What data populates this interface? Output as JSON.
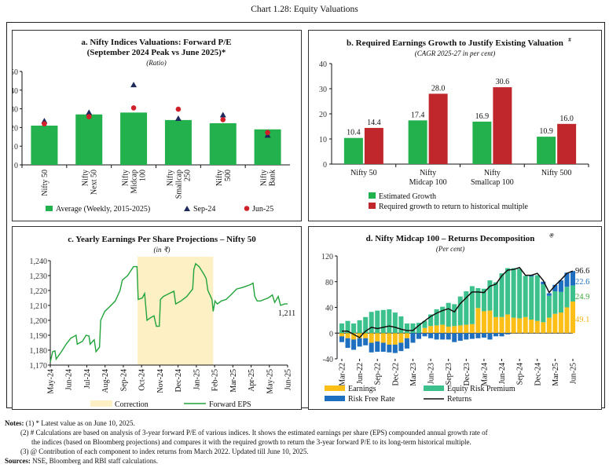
{
  "title": "Chart 1.28: Equity Valuations",
  "notes": {
    "label": "Notes:",
    "items": [
      "(1)  * Latest value as on June 10, 2025.",
      "(2)  # Calculations are based on analysis of 3-year forward P/E of various indices. It shows the estimated earnings per share (EPS) compounded annual growth rate of",
      "the indices (based on Bloomberg projections) and compares it with the required growth to return the 3-year forward P/E to its long-term historical multiple.",
      "(3)  @ Contribution of each component to index returns from March 2022. Updated till June 10, 2025."
    ],
    "sources_label": "Sources:",
    "sources": "NSE, Bloomberg and RBI staff calculations."
  },
  "chart_data": [
    {
      "type": "bar",
      "title": "a. Nifty Indices Valuations: Forward P/E",
      "title2": "(September 2024 Peak vs June 2025)*",
      "subtitle": "(Ratio)",
      "categories": [
        [
          "Nifty 50"
        ],
        [
          "Nifty",
          "Next 50"
        ],
        [
          "Nifty",
          "Midcap",
          "100"
        ],
        [
          "Nifty",
          "Smallcap",
          "250"
        ],
        [
          "Nifty",
          "500"
        ],
        [
          "Nifty",
          "Bank"
        ]
      ],
      "ylim": [
        0,
        50
      ],
      "yticks": [
        0,
        10,
        20,
        30,
        40,
        50
      ],
      "series": [
        {
          "name": "Average (Weekly, 2015-2025)",
          "kind": "bar",
          "color": "#22b14c",
          "values": [
            21,
            27,
            28,
            24,
            22.3,
            19
          ]
        },
        {
          "name": "Sep-24",
          "kind": "triangle",
          "color": "#1f2a5c",
          "values": [
            23.5,
            28,
            42.8,
            24.8,
            26.7,
            15.8
          ]
        },
        {
          "name": "Jun-25",
          "kind": "circle",
          "color": "#d0202a",
          "values": [
            22,
            25.8,
            30.5,
            29.8,
            24.2,
            17.3
          ]
        }
      ],
      "legend": "bottom",
      "grid": false
    },
    {
      "type": "bar",
      "title": "b. Required Earnings Growth to Justify Existing Valuation#",
      "subtitle": "(CAGR  2025-27 in per cent)",
      "categories": [
        [
          "Nifty 50"
        ],
        [
          "Nifty",
          "Midcap 100"
        ],
        [
          "Nifty",
          "Smallcap 100"
        ],
        [
          "Nifty 500"
        ]
      ],
      "ylim": [
        0,
        40
      ],
      "yticks": [
        0,
        10,
        20,
        30,
        40
      ],
      "series": [
        {
          "name": "Estimated Growth",
          "color": "#22b14c",
          "values": [
            10.4,
            17.4,
            16.9,
            10.9
          ]
        },
        {
          "name": "Required growth to return to historical multiple",
          "color": "#c0272d",
          "values": [
            14.4,
            28.0,
            30.6,
            16.0
          ]
        }
      ],
      "data_labels": [
        "10.4",
        "17.4",
        "16.9",
        "10.9",
        "14.4",
        "28.0",
        "30.6",
        "16.0"
      ],
      "legend": "bottom",
      "grid": false
    },
    {
      "type": "line",
      "title": "c. Yearly Earnings Per Share Projections – Nifty 50",
      "subtitle": "(in ₹)",
      "ylim": [
        1170,
        1240
      ],
      "yticks": [
        "1,170",
        "1,180",
        "1,190",
        "1,200",
        "1,210",
        "1,220",
        "1,230",
        "1,240"
      ],
      "xlim": [
        "2024-05-01",
        "2025-06-10"
      ],
      "xticks": [
        "May-24",
        "Jun-24",
        "Jul-24",
        "Aug-24",
        "Sep-24",
        "Oct-24",
        "Nov-24",
        "Dec-24",
        "Jan-25",
        "Feb-25",
        "Mar-25",
        "Apr-25",
        "May-25",
        "Jun-25"
      ],
      "shaded_region": {
        "name": "Correction",
        "color": "#fdf0c4",
        "from": "2024-09-27",
        "to": "2025-02-03"
      },
      "series": [
        {
          "name": "Forward EPS",
          "color": "#22a33c",
          "points": [
            [
              "2024-05-01",
              1172
            ],
            [
              "2024-05-05",
              1179
            ],
            [
              "2024-05-09",
              1179.5
            ],
            [
              "2024-05-11",
              1174
            ],
            [
              "2024-05-20",
              1179
            ],
            [
              "2024-05-28",
              1184
            ],
            [
              "2024-06-05",
              1188
            ],
            [
              "2024-06-14",
              1190
            ],
            [
              "2024-06-16",
              1184
            ],
            [
              "2024-06-25",
              1186
            ],
            [
              "2024-07-01",
              1190
            ],
            [
              "2024-07-06",
              1189.5
            ],
            [
              "2024-07-08",
              1184
            ],
            [
              "2024-07-15",
              1187
            ],
            [
              "2024-07-18",
              1179
            ],
            [
              "2024-07-24",
              1182
            ],
            [
              "2024-07-26",
              1200
            ],
            [
              "2024-08-02",
              1206
            ],
            [
              "2024-08-10",
              1209
            ],
            [
              "2024-08-20",
              1213
            ],
            [
              "2024-08-28",
              1220
            ],
            [
              "2024-09-01",
              1227
            ],
            [
              "2024-09-10",
              1230
            ],
            [
              "2024-09-20",
              1236
            ],
            [
              "2024-09-26",
              1236
            ],
            [
              "2024-09-28",
              1214
            ],
            [
              "2024-10-05",
              1215
            ],
            [
              "2024-10-09",
              1218
            ],
            [
              "2024-10-13",
              1200
            ],
            [
              "2024-10-20",
              1202
            ],
            [
              "2024-10-25",
              1203
            ],
            [
              "2024-10-29",
              1196
            ],
            [
              "2024-11-03",
              1196
            ],
            [
              "2024-11-05",
              1214
            ],
            [
              "2024-11-10",
              1216
            ],
            [
              "2024-11-20",
              1218
            ],
            [
              "2024-11-28",
              1219.5
            ],
            [
              "2024-12-01",
              1211
            ],
            [
              "2024-12-10",
              1213
            ],
            [
              "2024-12-20",
              1216
            ],
            [
              "2024-12-30",
              1221
            ],
            [
              "2025-01-01",
              1234
            ],
            [
              "2025-01-04",
              1238
            ],
            [
              "2025-01-10",
              1236
            ],
            [
              "2025-01-18",
              1231
            ],
            [
              "2025-01-22",
              1228
            ],
            [
              "2025-01-25",
              1220
            ],
            [
              "2025-02-01",
              1214
            ],
            [
              "2025-02-03",
              1206
            ],
            [
              "2025-02-06",
              1213
            ],
            [
              "2025-02-10",
              1211
            ],
            [
              "2025-02-17",
              1213
            ],
            [
              "2025-02-25",
              1214
            ],
            [
              "2025-03-05",
              1217
            ],
            [
              "2025-03-15",
              1221
            ],
            [
              "2025-03-25",
              1222
            ],
            [
              "2025-04-01",
              1223
            ],
            [
              "2025-04-08",
              1224
            ],
            [
              "2025-04-12",
              1225
            ],
            [
              "2025-04-15",
              1216
            ],
            [
              "2025-04-19",
              1213
            ],
            [
              "2025-04-25",
              1213
            ],
            [
              "2025-05-01",
              1214
            ],
            [
              "2025-05-08",
              1215
            ],
            [
              "2025-05-15",
              1217
            ],
            [
              "2025-05-19",
              1212
            ],
            [
              "2025-05-25",
              1216
            ],
            [
              "2025-05-29",
              1210
            ],
            [
              "2025-06-05",
              1211
            ],
            [
              "2025-06-10",
              1211
            ]
          ]
        }
      ],
      "end_label": "1,211",
      "legend": "bottom",
      "grid": false
    },
    {
      "type": "bar",
      "stacked": true,
      "title": "d. Nifty Midcap 100 – Returns Decomposition@",
      "subtitle": "(Per cent)",
      "ylim": [
        -40,
        120
      ],
      "yticks": [
        -40,
        0,
        40,
        80,
        120
      ],
      "categories": [
        "Mar-22",
        "Apr-22",
        "May-22",
        "Jun-22",
        "Jul-22",
        "Aug-22",
        "Sep-22",
        "Oct-22",
        "Nov-22",
        "Dec-22",
        "Jan-23",
        "Feb-23",
        "Mar-23",
        "Apr-23",
        "May-23",
        "Jun-23",
        "Jul-23",
        "Aug-23",
        "Sep-23",
        "Oct-23",
        "Nov-23",
        "Dec-23",
        "Jan-24",
        "Feb-24",
        "Mar-24",
        "Apr-24",
        "May-24",
        "Jun-24",
        "Jul-24",
        "Aug-24",
        "Sep-24",
        "Oct-24",
        "Nov-24",
        "Dec-24",
        "Jan-25",
        "Feb-25",
        "Mar-25",
        "Apr-25",
        "May-25",
        "Jun-25"
      ],
      "xtick_labels": [
        "Mar-22",
        "Jun-22",
        "Sep-22",
        "Dec-22",
        "Mar-23",
        "Jun-23",
        "Sep-23",
        "Dec-23",
        "Mar-24",
        "Jun-24",
        "Sep-24",
        "Dec-24",
        "Mar-25",
        "Jun-25"
      ],
      "series": [
        {
          "name": "Earnings",
          "color": "#fbbf17",
          "values": [
            -5,
            -8,
            -10,
            -8,
            -8,
            -15,
            -13,
            -15,
            -18,
            -18,
            -15,
            -8,
            0,
            0,
            8,
            11,
            12,
            13,
            10,
            11,
            12,
            13,
            14,
            39,
            34,
            35,
            25,
            25,
            29,
            24,
            23,
            25,
            21,
            19,
            17,
            24,
            30,
            32,
            40,
            49.1
          ]
        },
        {
          "name": "Equity Risk Premium",
          "color": "#3cc18c",
          "values": [
            15,
            19,
            15,
            20,
            25,
            33,
            35,
            36,
            37,
            32,
            26,
            15,
            15,
            16,
            11,
            18,
            25,
            28,
            37,
            34,
            45,
            52,
            59,
            31,
            35,
            47,
            54,
            68,
            72,
            77,
            77,
            64,
            67,
            71,
            59,
            34,
            35,
            32,
            32,
            24.9
          ]
        },
        {
          "name": "Risk Free Rate",
          "color": "#1f6fc0",
          "values": [
            -9,
            -15,
            -16,
            -13,
            -11,
            -15,
            -16,
            -14,
            -12,
            -13,
            -13,
            -16,
            -15,
            -9,
            -5,
            -8,
            -10,
            -10,
            -10,
            -14,
            -12,
            -10,
            -9,
            -8,
            -7,
            -10,
            -5,
            -5,
            -2,
            0,
            0,
            0,
            2,
            0,
            4,
            4,
            10,
            18,
            22,
            22.6
          ]
        },
        {
          "name": "Returns",
          "kind": "line",
          "color": "#111111",
          "values": [
            3,
            3,
            -2,
            -7,
            3,
            9,
            7,
            9,
            11,
            9,
            6,
            4,
            4,
            12,
            19,
            26,
            31,
            35,
            38,
            33,
            46,
            55,
            64,
            64,
            63,
            73,
            76,
            89,
            98,
            99,
            102,
            90,
            90,
            93,
            82,
            63,
            74,
            83,
            93,
            96.6
          ]
        }
      ],
      "end_labels": [
        {
          "text": "96.6",
          "color": "#111111"
        },
        {
          "text": "22.6",
          "color": "#1f6fc0"
        },
        {
          "text": "24.9",
          "color": "#3aa63a"
        },
        {
          "text": "49.1",
          "color": "#f0b416"
        }
      ],
      "legend": "bottom",
      "grid": false
    }
  ]
}
